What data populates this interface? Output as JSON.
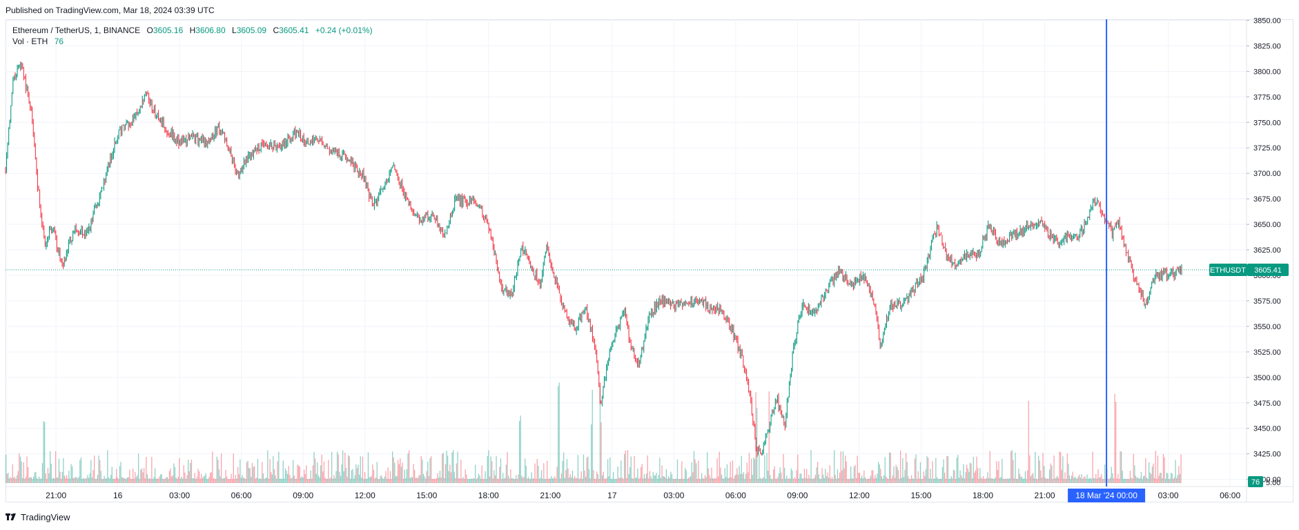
{
  "header": {
    "published": "Published on TradingView.com, Mar 18, 2024 03:39 UTC"
  },
  "legend": {
    "symbol": "Ethereum / TetherUS, 1, BINANCE",
    "o_label": "O",
    "o_value": "3605.16",
    "h_label": "H",
    "h_value": "3606.80",
    "l_label": "L",
    "l_value": "3605.09",
    "c_label": "C",
    "c_value": "3605.41",
    "change": "+0.24 (+0.01%)",
    "vol_label": "Vol · ETH",
    "vol_value": "76"
  },
  "footer": {
    "brand": "TradingView"
  },
  "colors": {
    "up": "#089981",
    "down": "#f23645",
    "crosshair": "#2962ff",
    "grid": "#f0f3fa",
    "axis_text": "#131722"
  },
  "chart_data": {
    "type": "candlestick",
    "title": "Ethereum / TetherUS, 1, BINANCE",
    "interval": "1 minute",
    "y_ticks": [
      "3850.00",
      "3825.00",
      "3800.00",
      "3775.00",
      "3750.00",
      "3725.00",
      "3700.00",
      "3675.00",
      "3650.00",
      "3625.00",
      "3600.00",
      "3575.00",
      "3550.00",
      "3525.00",
      "3500.00",
      "3475.00",
      "3450.00",
      "3425.00",
      "3400.00"
    ],
    "ylim": [
      3393,
      3851
    ],
    "x_ticks": [
      "21:00",
      "16",
      "03:00",
      "06:00",
      "09:00",
      "12:00",
      "15:00",
      "18:00",
      "21:00",
      "17",
      "03:00",
      "06:00",
      "09:00",
      "12:00",
      "15:00",
      "18:00",
      "21:00",
      "00:00",
      "03:00",
      "06:00"
    ],
    "x_tick_hours": [
      21,
      24,
      27,
      30,
      33,
      36,
      39,
      42,
      45,
      48,
      51,
      54,
      57,
      60,
      63,
      66,
      69,
      72,
      75,
      78
    ],
    "x_range_hours": [
      18.55,
      78.8
    ],
    "data_end_hour": 75.65,
    "price_path": [
      [
        18.55,
        3705
      ],
      [
        18.9,
        3790
      ],
      [
        19.3,
        3808
      ],
      [
        19.8,
        3760
      ],
      [
        20.1,
        3690
      ],
      [
        20.45,
        3628
      ],
      [
        20.8,
        3650
      ],
      [
        21.3,
        3608
      ],
      [
        21.9,
        3645
      ],
      [
        22.5,
        3640
      ],
      [
        23.3,
        3690
      ],
      [
        24.0,
        3740
      ],
      [
        24.8,
        3752
      ],
      [
        25.4,
        3778
      ],
      [
        25.8,
        3760
      ],
      [
        26.4,
        3742
      ],
      [
        27.0,
        3730
      ],
      [
        27.6,
        3735
      ],
      [
        28.2,
        3730
      ],
      [
        28.9,
        3745
      ],
      [
        29.4,
        3725
      ],
      [
        29.8,
        3697
      ],
      [
        30.4,
        3718
      ],
      [
        31.0,
        3728
      ],
      [
        31.8,
        3725
      ],
      [
        32.6,
        3740
      ],
      [
        33.2,
        3730
      ],
      [
        33.8,
        3733
      ],
      [
        34.4,
        3722
      ],
      [
        35.2,
        3715
      ],
      [
        35.9,
        3698
      ],
      [
        36.4,
        3668
      ],
      [
        36.9,
        3685
      ],
      [
        37.4,
        3708
      ],
      [
        37.9,
        3680
      ],
      [
        38.6,
        3655
      ],
      [
        39.3,
        3658
      ],
      [
        39.9,
        3640
      ],
      [
        40.4,
        3675
      ],
      [
        41.0,
        3672
      ],
      [
        41.6,
        3668
      ],
      [
        42.1,
        3640
      ],
      [
        42.6,
        3590
      ],
      [
        43.1,
        3578
      ],
      [
        43.6,
        3630
      ],
      [
        44.1,
        3608
      ],
      [
        44.5,
        3590
      ],
      [
        44.8,
        3630
      ],
      [
        45.2,
        3600
      ],
      [
        45.6,
        3568
      ],
      [
        46.2,
        3545
      ],
      [
        46.7,
        3570
      ],
      [
        47.2,
        3528
      ],
      [
        47.45,
        3470
      ],
      [
        47.8,
        3520
      ],
      [
        48.2,
        3545
      ],
      [
        48.6,
        3568
      ],
      [
        48.9,
        3530
      ],
      [
        49.3,
        3510
      ],
      [
        49.8,
        3560
      ],
      [
        50.3,
        3575
      ],
      [
        51.0,
        3572
      ],
      [
        51.6,
        3570
      ],
      [
        52.2,
        3575
      ],
      [
        52.8,
        3568
      ],
      [
        53.3,
        3565
      ],
      [
        53.8,
        3548
      ],
      [
        54.3,
        3520
      ],
      [
        54.7,
        3480
      ],
      [
        55.0,
        3430
      ],
      [
        55.3,
        3425
      ],
      [
        55.7,
        3460
      ],
      [
        56.0,
        3478
      ],
      [
        56.4,
        3455
      ],
      [
        56.8,
        3530
      ],
      [
        57.2,
        3570
      ],
      [
        57.8,
        3562
      ],
      [
        58.4,
        3585
      ],
      [
        59.0,
        3605
      ],
      [
        59.6,
        3590
      ],
      [
        60.2,
        3600
      ],
      [
        60.7,
        3575
      ],
      [
        61.0,
        3532
      ],
      [
        61.5,
        3570
      ],
      [
        62.1,
        3572
      ],
      [
        62.7,
        3588
      ],
      [
        63.1,
        3600
      ],
      [
        63.5,
        3630
      ],
      [
        63.8,
        3648
      ],
      [
        64.2,
        3620
      ],
      [
        64.6,
        3612
      ],
      [
        65.2,
        3618
      ],
      [
        65.8,
        3622
      ],
      [
        66.3,
        3650
      ],
      [
        66.8,
        3630
      ],
      [
        67.5,
        3640
      ],
      [
        68.3,
        3650
      ],
      [
        68.9,
        3650
      ],
      [
        69.6,
        3632
      ],
      [
        70.2,
        3640
      ],
      [
        70.6,
        3635
      ],
      [
        71.1,
        3658
      ],
      [
        71.4,
        3675
      ],
      [
        71.8,
        3660
      ],
      [
        72.3,
        3640
      ],
      [
        72.6,
        3653
      ],
      [
        73.0,
        3620
      ],
      [
        73.4,
        3595
      ],
      [
        73.9,
        3570
      ],
      [
        74.3,
        3598
      ],
      [
        74.9,
        3602
      ],
      [
        75.3,
        3602
      ],
      [
        75.65,
        3605.41
      ]
    ],
    "last_price": 3605.41,
    "last_price_label": "ETHUSDT",
    "last_price_text": "3605.41",
    "volume": {
      "label": "Vol · ETH",
      "last_value": "76",
      "axis_label": "5.00"
    },
    "crosshair": {
      "x_label": "18 Mar '24   00:00",
      "hour": 72.0
    }
  }
}
